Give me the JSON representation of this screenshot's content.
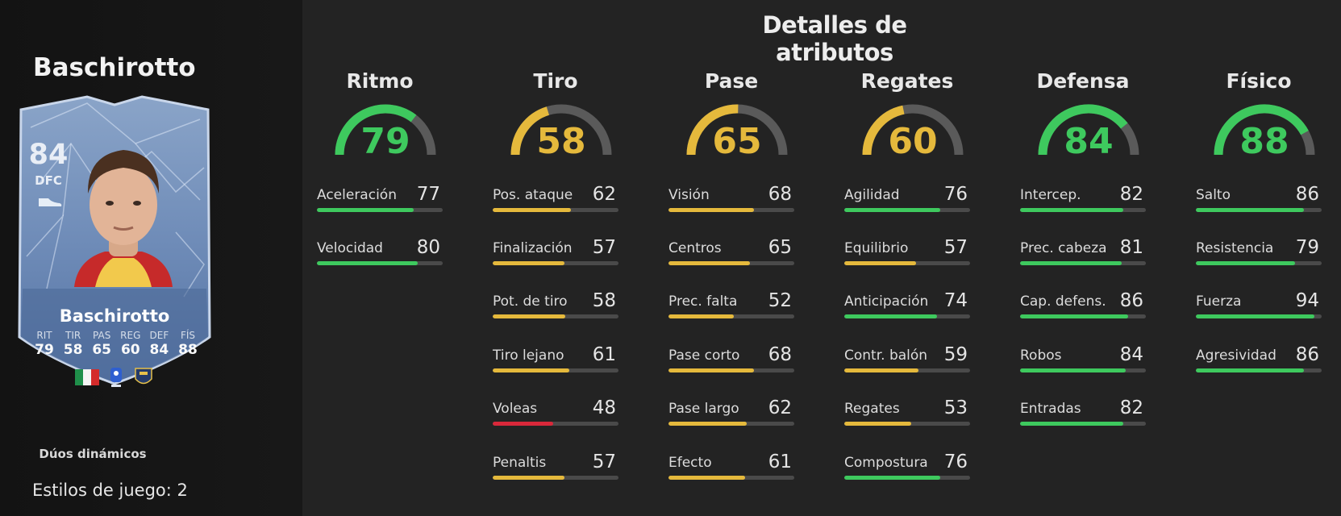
{
  "player": {
    "name": "Baschirotto"
  },
  "card": {
    "rating": "84",
    "position": "DFC",
    "name": "Baschirotto",
    "stats": [
      {
        "label": "RIT",
        "value": "79"
      },
      {
        "label": "TIR",
        "value": "58"
      },
      {
        "label": "PAS",
        "value": "65"
      },
      {
        "label": "REG",
        "value": "60"
      },
      {
        "label": "DEF",
        "value": "84"
      },
      {
        "label": "FÍS",
        "value": "88"
      }
    ],
    "icons": [
      "boot-icon",
      "italy-flag-icon",
      "serie-a-logo",
      "lecce-badge-icon"
    ]
  },
  "duo_label": "Dúos dinámicos",
  "styles_label": "Estilos de juego: 2",
  "section_title": "Detalles de atributos",
  "colors": {
    "green": "#3ec95e",
    "yellow": "#e5b93c",
    "red": "#d9283a",
    "track": "#4a4a4a",
    "card": "#6f8cb8"
  },
  "columns": [
    {
      "title": "Ritmo",
      "value": 79,
      "attributes": [
        {
          "name": "Aceleración",
          "value": 77
        },
        {
          "name": "Velocidad",
          "value": 80
        }
      ]
    },
    {
      "title": "Tiro",
      "value": 58,
      "attributes": [
        {
          "name": "Pos. ataque",
          "value": 62
        },
        {
          "name": "Finalización",
          "value": 57
        },
        {
          "name": "Pot. de tiro",
          "value": 58
        },
        {
          "name": "Tiro lejano",
          "value": 61
        },
        {
          "name": "Voleas",
          "value": 48
        },
        {
          "name": "Penaltis",
          "value": 57
        }
      ]
    },
    {
      "title": "Pase",
      "value": 65,
      "attributes": [
        {
          "name": "Visión",
          "value": 68
        },
        {
          "name": "Centros",
          "value": 65
        },
        {
          "name": "Prec. falta",
          "value": 52
        },
        {
          "name": "Pase corto",
          "value": 68
        },
        {
          "name": "Pase largo",
          "value": 62
        },
        {
          "name": "Efecto",
          "value": 61
        }
      ]
    },
    {
      "title": "Regates",
      "value": 60,
      "attributes": [
        {
          "name": "Agilidad",
          "value": 76
        },
        {
          "name": "Equilibrio",
          "value": 57
        },
        {
          "name": "Anticipación",
          "value": 74
        },
        {
          "name": "Contr. balón",
          "value": 59
        },
        {
          "name": "Regates",
          "value": 53
        },
        {
          "name": "Compostura",
          "value": 76
        }
      ]
    },
    {
      "title": "Defensa",
      "value": 84,
      "attributes": [
        {
          "name": "Intercep.",
          "value": 82
        },
        {
          "name": "Prec. cabeza",
          "value": 81
        },
        {
          "name": "Cap. defens.",
          "value": 86
        },
        {
          "name": "Robos",
          "value": 84
        },
        {
          "name": "Entradas",
          "value": 82
        }
      ]
    },
    {
      "title": "Físico",
      "value": 88,
      "attributes": [
        {
          "name": "Salto",
          "value": 86
        },
        {
          "name": "Resistencia",
          "value": 79
        },
        {
          "name": "Fuerza",
          "value": 94
        },
        {
          "name": "Agresividad",
          "value": 86
        }
      ]
    }
  ]
}
